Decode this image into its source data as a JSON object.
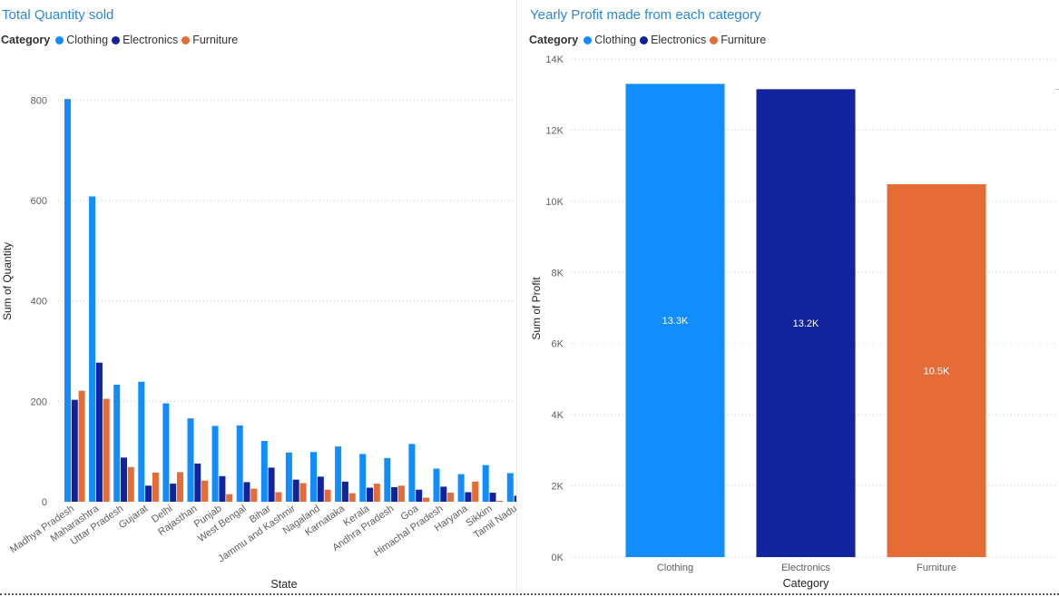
{
  "colors": {
    "Clothing": "#118dff",
    "Electronics": "#12239e",
    "Furniture": "#e66c37"
  },
  "legend": {
    "title": "Category",
    "items": [
      {
        "label": "Clothing",
        "color": "#118dff"
      },
      {
        "label": "Electronics",
        "color": "#12239e"
      },
      {
        "label": "Furniture",
        "color": "#e66c37"
      }
    ]
  },
  "charts": {
    "quantity": {
      "title": "Total Quantity sold"
    },
    "profit": {
      "title": "Yearly Profit made from each category"
    }
  },
  "chart_data": [
    {
      "type": "bar",
      "title": "Total Quantity sold",
      "xlabel": "State",
      "ylabel": "Sum of Quantity",
      "ylim": [
        0,
        880
      ],
      "yticks": [
        0,
        200,
        400,
        600,
        800
      ],
      "grid": true,
      "legend_position": "top-left",
      "categories": [
        "Madhya Pradesh",
        "Maharashtra",
        "Uttar Pradesh",
        "Gujarat",
        "Delhi",
        "Rajasthan",
        "Punjab",
        "West Bengal",
        "Bihar",
        "Jammu and Kashmir",
        "Nagaland",
        "Karnataka",
        "Kerala",
        "Andhra Pradesh",
        "Goa",
        "Himachal Pradesh",
        "Haryana",
        "Sikkim",
        "Tamil Nadu"
      ],
      "series": [
        {
          "name": "Clothing",
          "values": [
            802,
            608,
            233,
            239,
            196,
            166,
            151,
            152,
            121,
            98,
            99,
            110,
            95,
            87,
            115,
            66,
            55,
            73,
            57
          ]
        },
        {
          "name": "Electronics",
          "values": [
            203,
            277,
            88,
            32,
            36,
            76,
            51,
            39,
            68,
            44,
            50,
            40,
            28,
            29,
            24,
            30,
            19,
            18,
            12
          ]
        },
        {
          "name": "Furniture",
          "values": [
            221,
            205,
            69,
            58,
            59,
            42,
            15,
            26,
            19,
            37,
            24,
            17,
            36,
            32,
            8,
            18,
            40,
            2,
            24
          ]
        }
      ]
    },
    {
      "type": "bar",
      "title": "Yearly Profit made from each category",
      "xlabel": "Category",
      "ylabel": "Sum of Profit",
      "ylim": [
        0,
        14000
      ],
      "yticks": [
        0,
        2000,
        4000,
        6000,
        8000,
        10000,
        12000,
        14000
      ],
      "ytick_labels": [
        "0K",
        "2K",
        "4K",
        "6K",
        "8K",
        "10K",
        "12K",
        "14K"
      ],
      "grid": true,
      "legend_position": "top-left",
      "categories": [
        "Clothing",
        "Electronics",
        "Furniture"
      ],
      "values": [
        13300,
        13150,
        10480
      ],
      "data_labels": [
        "13.3K",
        "13.2K",
        "10.5K"
      ]
    }
  ]
}
